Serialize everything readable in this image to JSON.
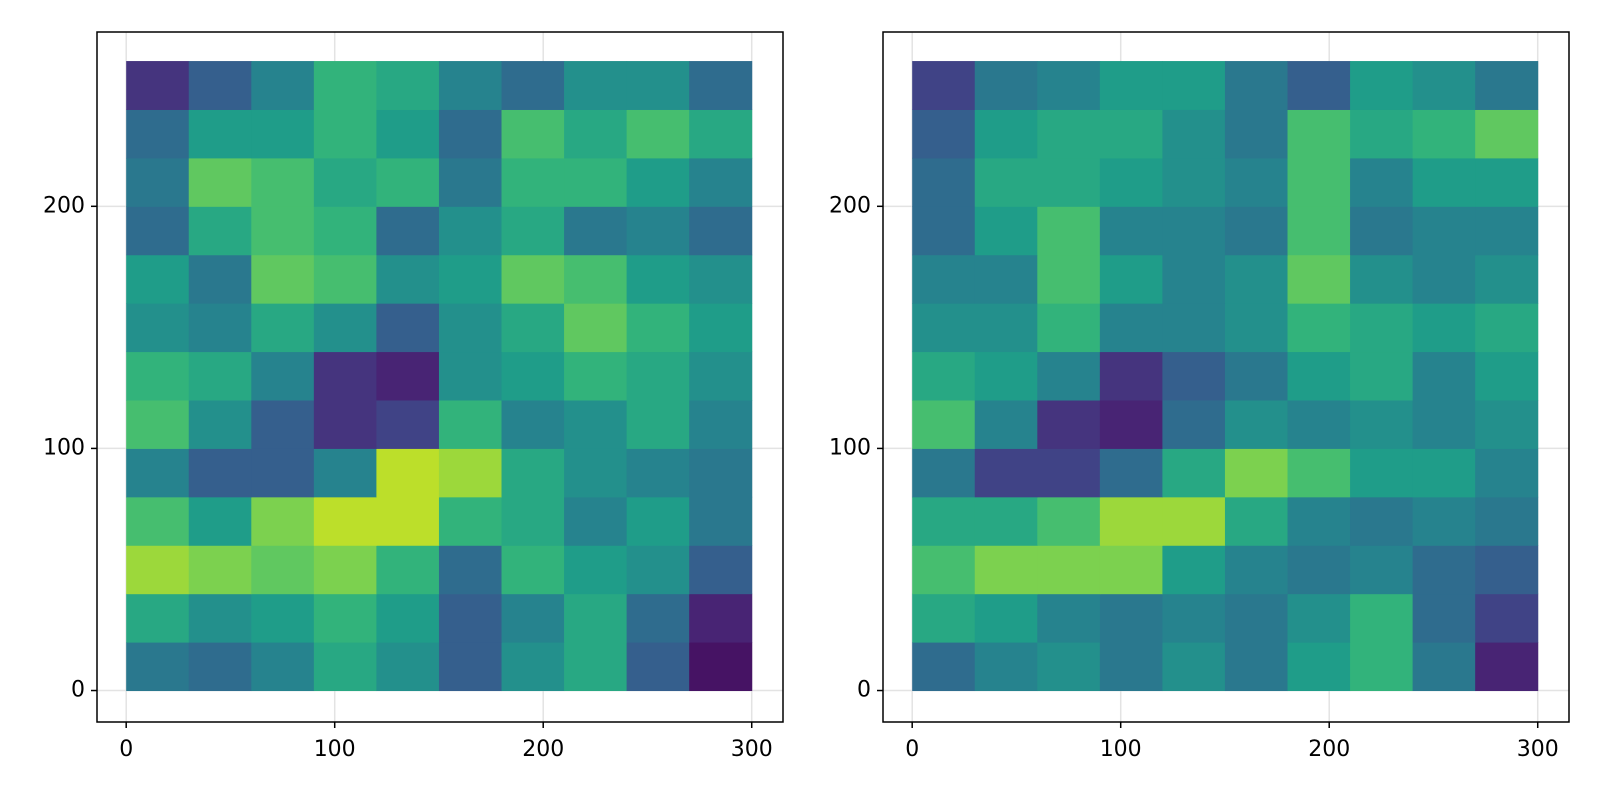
{
  "chart_data": [
    {
      "type": "heatmap",
      "colormap": "viridis",
      "colorrange": [
        0,
        1
      ],
      "grid": true,
      "xlim": [
        -14,
        315
      ],
      "ylim": [
        -13,
        272
      ],
      "xticks": [
        0,
        100,
        200,
        300
      ],
      "yticks": [
        0,
        100,
        200
      ],
      "xbins": [
        0,
        30,
        60,
        90,
        120,
        150,
        180,
        210,
        240,
        270,
        300
      ],
      "ybins": [
        0,
        20,
        40,
        60,
        80,
        100,
        120,
        140,
        160,
        180,
        200,
        220,
        240,
        260
      ],
      "values": [
        [
          0.4,
          0.35,
          0.45,
          0.6,
          0.5,
          0.3,
          0.5,
          0.6,
          0.3,
          0.05
        ],
        [
          0.6,
          0.5,
          0.55,
          0.65,
          0.55,
          0.3,
          0.45,
          0.6,
          0.35,
          0.1
        ],
        [
          0.85,
          0.8,
          0.75,
          0.8,
          0.65,
          0.35,
          0.65,
          0.55,
          0.5,
          0.3
        ],
        [
          0.7,
          0.55,
          0.8,
          0.9,
          0.9,
          0.65,
          0.6,
          0.45,
          0.55,
          0.4
        ],
        [
          0.45,
          0.3,
          0.3,
          0.45,
          0.9,
          0.85,
          0.6,
          0.5,
          0.45,
          0.4
        ],
        [
          0.7,
          0.5,
          0.3,
          0.15,
          0.2,
          0.65,
          0.45,
          0.5,
          0.6,
          0.45
        ],
        [
          0.65,
          0.6,
          0.45,
          0.15,
          0.1,
          0.5,
          0.55,
          0.65,
          0.6,
          0.5
        ],
        [
          0.5,
          0.45,
          0.6,
          0.5,
          0.3,
          0.5,
          0.6,
          0.75,
          0.65,
          0.55
        ],
        [
          0.55,
          0.4,
          0.75,
          0.7,
          0.5,
          0.55,
          0.75,
          0.7,
          0.55,
          0.5
        ],
        [
          0.35,
          0.6,
          0.7,
          0.65,
          0.35,
          0.5,
          0.6,
          0.4,
          0.45,
          0.35
        ],
        [
          0.4,
          0.75,
          0.7,
          0.6,
          0.65,
          0.4,
          0.65,
          0.65,
          0.55,
          0.45
        ],
        [
          0.35,
          0.55,
          0.55,
          0.65,
          0.55,
          0.35,
          0.7,
          0.6,
          0.7,
          0.6
        ],
        [
          0.15,
          0.3,
          0.45,
          0.65,
          0.6,
          0.45,
          0.35,
          0.5,
          0.5,
          0.35
        ]
      ]
    },
    {
      "type": "heatmap",
      "colormap": "viridis",
      "colorrange": [
        0,
        1
      ],
      "grid": true,
      "xlim": [
        -14,
        315
      ],
      "ylim": [
        -13,
        272
      ],
      "xticks": [
        0,
        100,
        200,
        300
      ],
      "yticks": [
        0,
        100,
        200
      ],
      "xbins": [
        0,
        30,
        60,
        90,
        120,
        150,
        180,
        210,
        240,
        270,
        300
      ],
      "ybins": [
        0,
        20,
        40,
        60,
        80,
        100,
        120,
        140,
        160,
        180,
        200,
        220,
        240,
        260
      ],
      "values": [
        [
          0.35,
          0.45,
          0.5,
          0.4,
          0.5,
          0.4,
          0.55,
          0.65,
          0.4,
          0.1
        ],
        [
          0.6,
          0.55,
          0.45,
          0.4,
          0.45,
          0.4,
          0.5,
          0.65,
          0.35,
          0.2
        ],
        [
          0.7,
          0.8,
          0.8,
          0.8,
          0.55,
          0.45,
          0.4,
          0.45,
          0.35,
          0.3
        ],
        [
          0.6,
          0.6,
          0.7,
          0.85,
          0.85,
          0.6,
          0.45,
          0.4,
          0.45,
          0.4
        ],
        [
          0.4,
          0.2,
          0.2,
          0.35,
          0.6,
          0.8,
          0.7,
          0.55,
          0.55,
          0.45
        ],
        [
          0.7,
          0.45,
          0.15,
          0.1,
          0.35,
          0.5,
          0.45,
          0.5,
          0.45,
          0.5
        ],
        [
          0.6,
          0.55,
          0.45,
          0.15,
          0.3,
          0.4,
          0.55,
          0.6,
          0.45,
          0.55
        ],
        [
          0.5,
          0.5,
          0.65,
          0.45,
          0.45,
          0.5,
          0.65,
          0.6,
          0.55,
          0.6
        ],
        [
          0.45,
          0.45,
          0.7,
          0.55,
          0.45,
          0.5,
          0.75,
          0.5,
          0.45,
          0.5
        ],
        [
          0.35,
          0.55,
          0.7,
          0.45,
          0.45,
          0.4,
          0.7,
          0.4,
          0.45,
          0.45
        ],
        [
          0.35,
          0.6,
          0.6,
          0.55,
          0.5,
          0.45,
          0.7,
          0.45,
          0.55,
          0.55
        ],
        [
          0.3,
          0.55,
          0.6,
          0.6,
          0.5,
          0.4,
          0.7,
          0.6,
          0.65,
          0.75
        ],
        [
          0.2,
          0.4,
          0.45,
          0.55,
          0.55,
          0.4,
          0.3,
          0.55,
          0.5,
          0.4
        ]
      ]
    }
  ]
}
